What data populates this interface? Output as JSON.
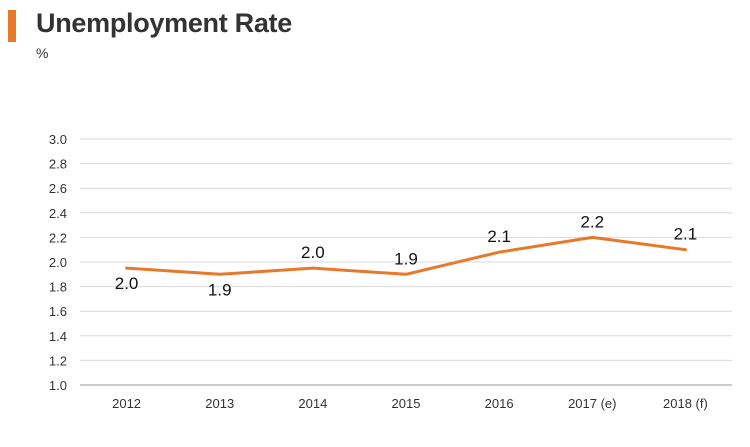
{
  "header": {
    "title": "Unemployment Rate",
    "unit": "%"
  },
  "colors": {
    "line": "#e8782a",
    "grid": "#d9d9d9",
    "text": "#333333",
    "accent": "#e8782a"
  },
  "chart_data": {
    "type": "line",
    "title": "Unemployment Rate",
    "xlabel": "",
    "ylabel": "%",
    "categories": [
      "2012",
      "2013",
      "2014",
      "2015",
      "2016",
      "2017 (e)",
      "2018 (f)"
    ],
    "series": [
      {
        "values": [
          1.95,
          1.9,
          1.95,
          1.9,
          2.08,
          2.2,
          2.1
        ]
      }
    ],
    "data_labels": [
      "2.0",
      "1.9",
      "2.0",
      "1.9",
      "2.1",
      "2.2",
      "2.1"
    ],
    "ylim": [
      1.0,
      3.0
    ],
    "y_ticks": [
      "1.0",
      "1.2",
      "1.4",
      "1.6",
      "1.8",
      "2.0",
      "2.2",
      "2.4",
      "2.6",
      "2.8",
      "3.0"
    ],
    "grid": true,
    "legend": "none"
  }
}
